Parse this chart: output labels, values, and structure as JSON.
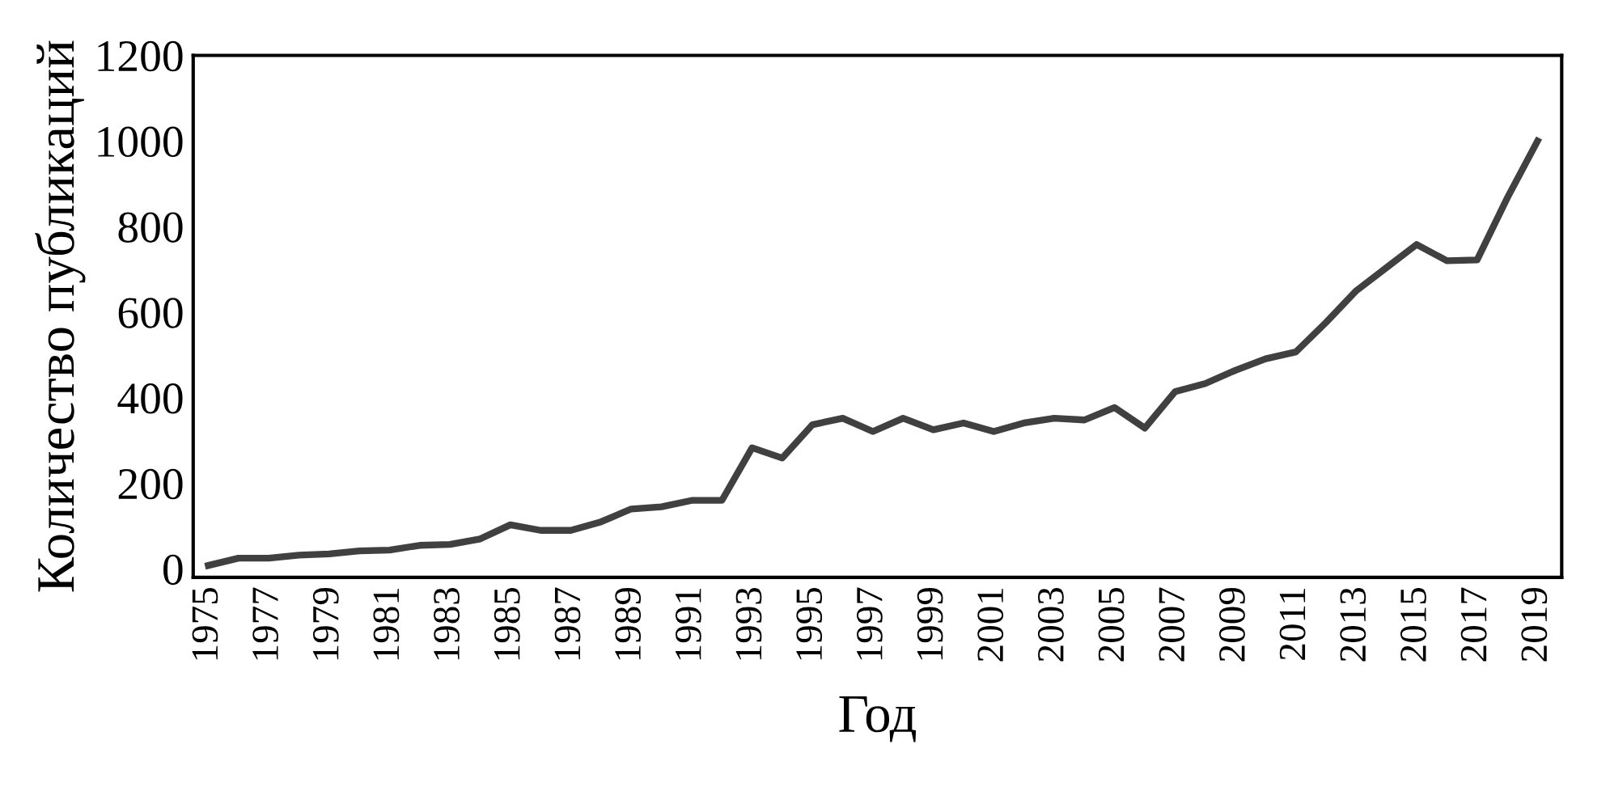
{
  "chart_data": {
    "type": "line",
    "xlabel": "Год",
    "ylabel": "Количество публикаций",
    "x": [
      1975,
      1976,
      1977,
      1978,
      1979,
      1980,
      1981,
      1982,
      1983,
      1984,
      1985,
      1986,
      1987,
      1988,
      1989,
      1990,
      1991,
      1992,
      1993,
      1994,
      1995,
      1996,
      1997,
      1998,
      1999,
      2000,
      2001,
      2002,
      2003,
      2004,
      2005,
      2006,
      2007,
      2008,
      2009,
      2010,
      2011,
      2012,
      2013,
      2014,
      2015,
      2016,
      2017,
      2018,
      2019
    ],
    "series": [
      {
        "color": "#404040",
        "values": [
          8,
          25,
          25,
          32,
          35,
          42,
          44,
          55,
          57,
          70,
          103,
          90,
          90,
          110,
          140,
          145,
          160,
          160,
          283,
          259,
          337,
          352,
          321,
          352,
          325,
          341,
          321,
          341,
          352,
          348,
          377,
          329,
          414,
          433,
          464,
          491,
          507,
          576,
          650,
          704,
          758,
          720,
          722,
          867,
          1000
        ]
      }
    ],
    "xlim": [
      1974.5,
      2019.8
    ],
    "xticks": [
      1975,
      1977,
      1979,
      1981,
      1983,
      1985,
      1987,
      1989,
      1991,
      1993,
      1995,
      1997,
      1999,
      2001,
      2003,
      2005,
      2007,
      2009,
      2011,
      2013,
      2015,
      2017,
      2019
    ],
    "ylim": [
      -20,
      1200
    ],
    "yticks": [
      0,
      200,
      400,
      600,
      800,
      1000,
      1200
    ],
    "grid": false,
    "marker": "none",
    "line_style": "solid"
  }
}
